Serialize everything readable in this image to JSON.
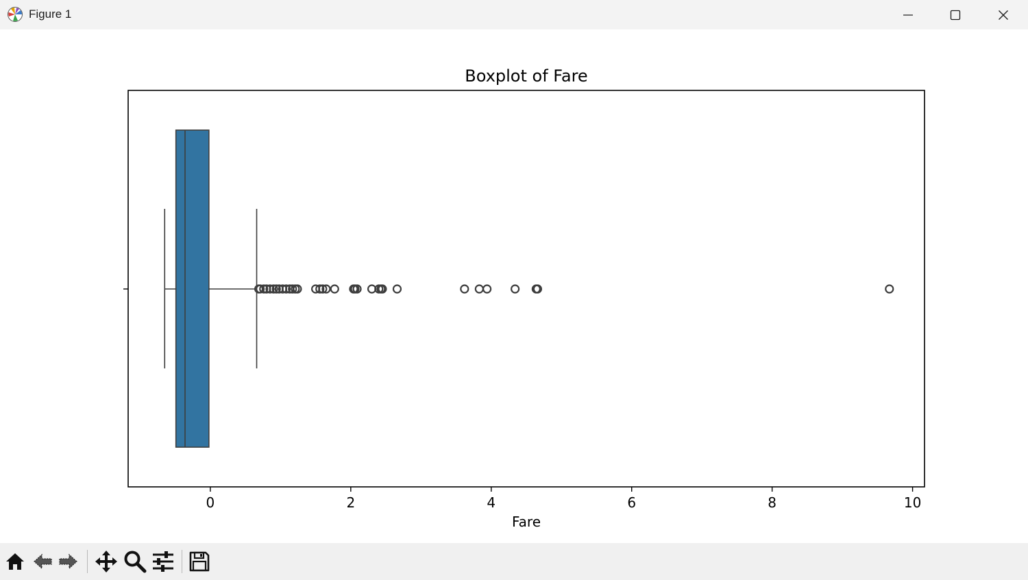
{
  "window": {
    "title": "Figure 1",
    "icons": {
      "app": "matplotlib-icon",
      "minimize": "minimize-icon",
      "maximize": "maximize-icon",
      "close": "close-icon"
    }
  },
  "toolbar": {
    "buttons": [
      {
        "name": "home-button",
        "icon": "home-icon"
      },
      {
        "name": "back-button",
        "icon": "back-arrow-icon"
      },
      {
        "name": "forward-button",
        "icon": "forward-arrow-icon"
      },
      {
        "name": "pan-button",
        "icon": "move-icon"
      },
      {
        "name": "zoom-button",
        "icon": "magnifier-icon"
      },
      {
        "name": "configure-subplots-button",
        "icon": "sliders-icon"
      },
      {
        "name": "save-button",
        "icon": "floppy-disk-icon"
      }
    ]
  },
  "chart_data": {
    "type": "boxplot",
    "title": "Boxplot of Fare",
    "xlabel": "Fare",
    "ylabel": "",
    "xlim": [
      -1.17,
      10.17
    ],
    "xticks": [
      0,
      2,
      4,
      6,
      8,
      10
    ],
    "grid": false,
    "box_color": "#3274a1",
    "edge_color": "#3d3d3d",
    "box": {
      "whisker_low": -0.65,
      "q1": -0.49,
      "median": -0.36,
      "q3": -0.02,
      "whisker_high": 0.66
    },
    "outliers": [
      0.69,
      0.71,
      0.76,
      0.8,
      0.85,
      0.9,
      0.94,
      0.98,
      1.03,
      1.08,
      1.13,
      1.17,
      1.21,
      1.24,
      1.5,
      1.56,
      1.6,
      1.65,
      1.77,
      2.04,
      2.06,
      2.09,
      2.3,
      2.4,
      2.43,
      2.45,
      2.66,
      3.62,
      3.83,
      3.94,
      4.34,
      4.64,
      4.66,
      9.67
    ]
  }
}
